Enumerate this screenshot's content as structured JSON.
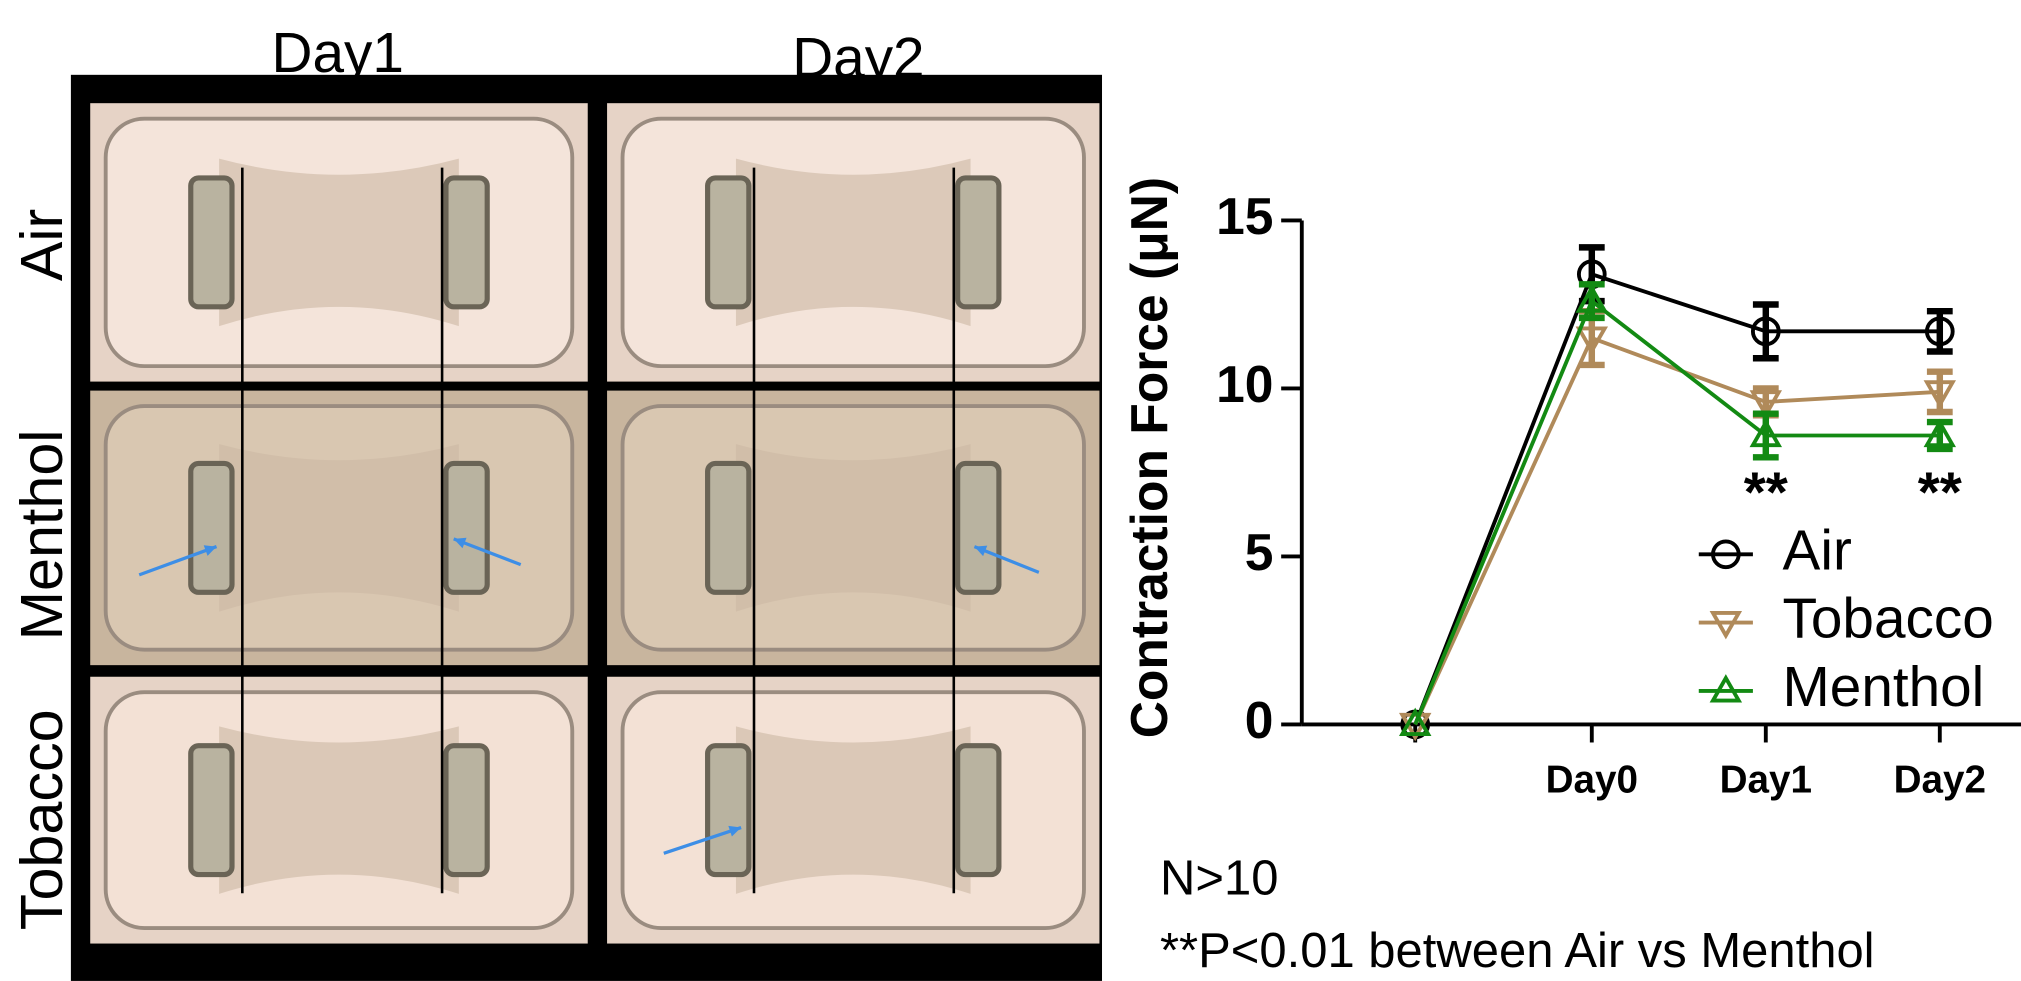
{
  "image_panel": {
    "columns": [
      "Day1",
      "Day2"
    ],
    "rows": [
      "Air",
      "Menthol",
      "Tobacco"
    ]
  },
  "chart_data": {
    "type": "line",
    "y_label": "Contraction Force (μN)",
    "categories": [
      null,
      "Day0",
      "Day1",
      "Day2"
    ],
    "ylim": [
      0,
      15
    ],
    "yticks": [
      0,
      5,
      10,
      15
    ],
    "legend": "lower right",
    "series": [
      {
        "name": "Air",
        "color": "#000000",
        "marker": "circle",
        "values": [
          0,
          13.4,
          11.7,
          11.7
        ],
        "errors": [
          null,
          0.8,
          0.8,
          0.6
        ]
      },
      {
        "name": "Tobacco",
        "color": "#b08a5a",
        "marker": "triangle-down",
        "values": [
          0,
          11.5,
          9.6,
          9.9
        ],
        "errors": [
          null,
          0.8,
          0.4,
          0.6
        ]
      },
      {
        "name": "Menthol",
        "color": "#138a13",
        "marker": "triangle-up",
        "values": [
          0,
          12.6,
          8.6,
          8.6
        ],
        "errors": [
          null,
          0.5,
          0.65,
          0.4
        ]
      }
    ],
    "significance_labels": [
      null,
      null,
      "**",
      "**"
    ],
    "notes": [
      "N>10",
      "**P<0.01 between Air vs Menthol"
    ]
  }
}
